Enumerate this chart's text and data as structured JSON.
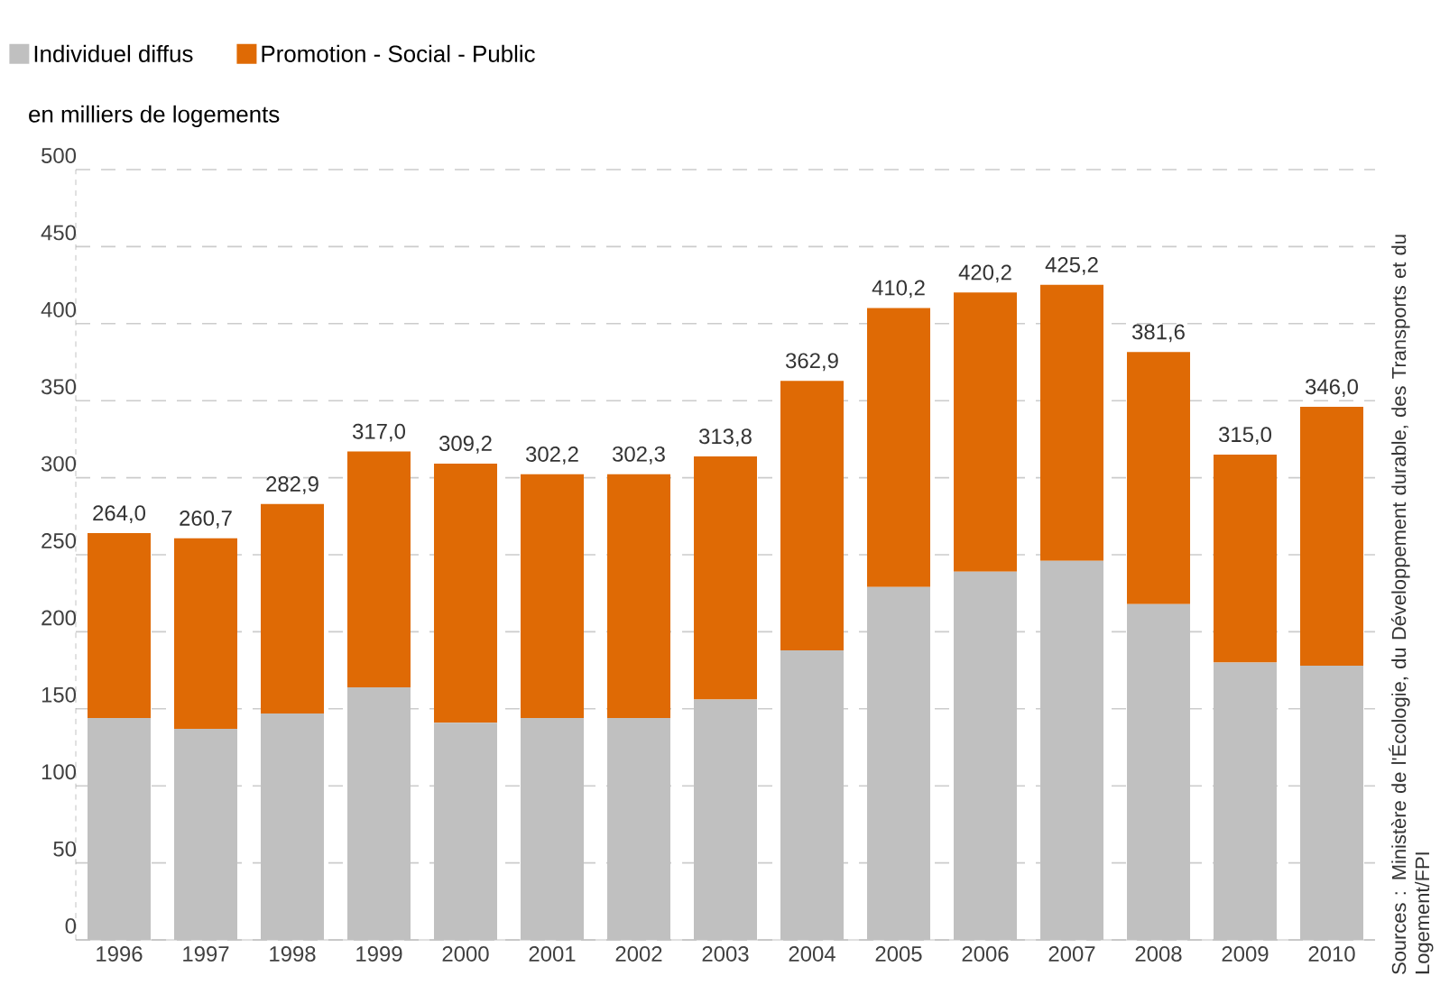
{
  "chart_data": {
    "type": "bar",
    "stacked": true,
    "ylabel": "en milliers de logements",
    "categories": [
      "1996",
      "1997",
      "1998",
      "1999",
      "2000",
      "2001",
      "2002",
      "2003",
      "2004",
      "2005",
      "2006",
      "2007",
      "2008",
      "2009",
      "2010"
    ],
    "series": [
      {
        "name": "Individuel diffus",
        "color": "#c0c0c0",
        "values": [
          144,
          137,
          147,
          164,
          141,
          144,
          144,
          156,
          188,
          229,
          239,
          246,
          218,
          180,
          178
        ]
      },
      {
        "name": "Promotion - Social - Public",
        "color": "#df6a05",
        "values": [
          120.0,
          123.7,
          135.9,
          153.0,
          168.2,
          158.2,
          158.3,
          157.8,
          174.9,
          181.2,
          181.2,
          179.2,
          163.6,
          135.0,
          168.0
        ]
      }
    ],
    "totals": [
      "264,0",
      "260,7",
      "282,9",
      "317,0",
      "309,2",
      "302,2",
      "302,3",
      "313,8",
      "362,9",
      "410,2",
      "420,2",
      "425,2",
      "381,6",
      "315,0",
      "346,0"
    ],
    "ylim": [
      0,
      500
    ],
    "yticks": [
      0,
      50,
      100,
      150,
      200,
      250,
      300,
      350,
      400,
      450,
      500
    ],
    "grid": "y",
    "legend": "top left",
    "annotations": [
      "Sources : Ministère de l'Écologie, du Développement durable, des Transports et du Logement/FPI"
    ]
  }
}
